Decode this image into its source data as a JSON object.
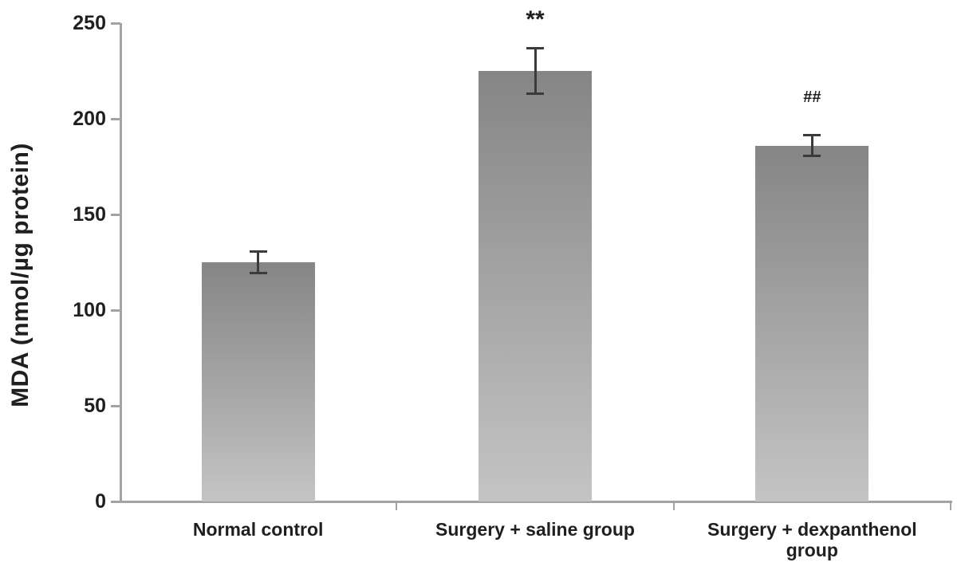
{
  "chart_data": {
    "type": "bar",
    "title": "",
    "ylabel": "MDA (nmol/µg protein)",
    "xlabel": "",
    "categories": [
      "Normal control",
      "Surgery + saline group",
      "Surgery + dexpanthenol group"
    ],
    "values": [
      125,
      225,
      186
    ],
    "error_bars": [
      6,
      12,
      5.5
    ],
    "annotations": [
      "",
      "**",
      "##"
    ],
    "ylim": [
      0,
      250
    ],
    "yticks": [
      0,
      50,
      100,
      150,
      200,
      250
    ],
    "grid": false,
    "legend": null,
    "colors": {
      "bar_gradient_top": "#858585",
      "bar_gradient_bottom": "#c4c4c4",
      "axis": "#a3a3a3",
      "error_bar": "#3b3b3b",
      "text": "#1f1f1f"
    }
  }
}
